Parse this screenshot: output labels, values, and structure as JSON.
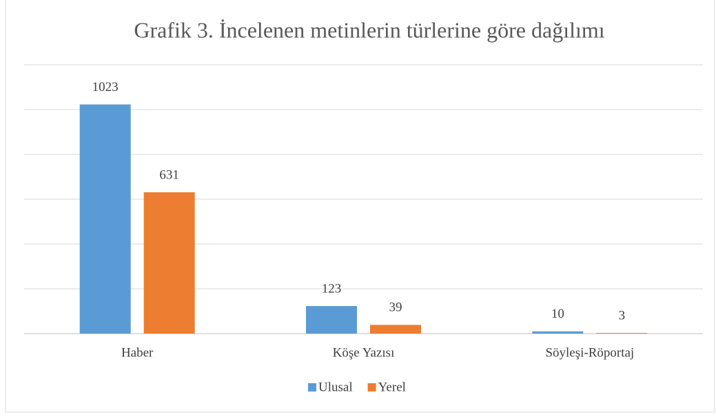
{
  "chart_data": {
    "type": "bar",
    "title": "Grafik 3. İncelenen metinlerin türlerine göre dağılımı",
    "categories": [
      "Haber",
      "Köşe Yazısı",
      "Söyleşi-Röportaj"
    ],
    "series": [
      {
        "name": "Ulusal",
        "color": "#5b9bd5",
        "values": [
          1023,
          123,
          10
        ]
      },
      {
        "name": "Yerel",
        "color": "#ed7d31",
        "values": [
          631,
          39,
          3
        ]
      }
    ],
    "ylim": [
      0,
      1200
    ],
    "yticks": [
      0,
      200,
      400,
      600,
      800,
      1000,
      1200
    ],
    "grid": true,
    "legend": "bottom"
  }
}
